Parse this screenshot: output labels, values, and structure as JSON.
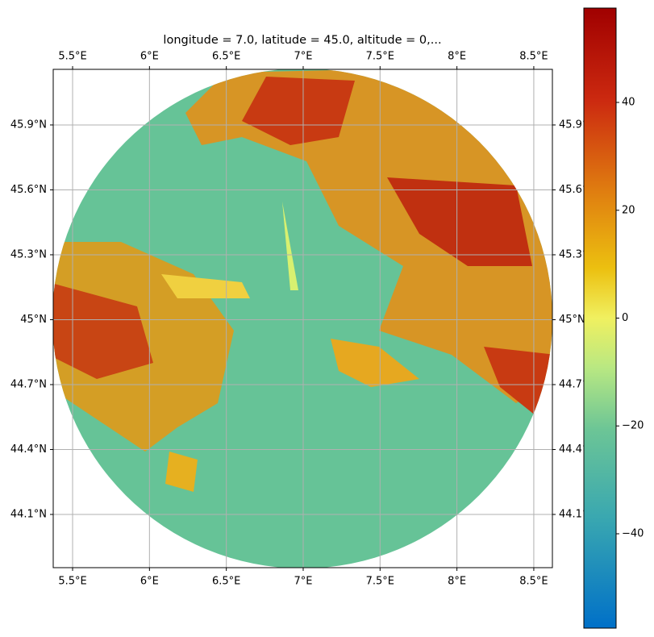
{
  "chart_data": {
    "type": "radar-map",
    "title": "longitude = 7.0, latitude = 45.0, altitude = 0,...",
    "xlim": [
      5.374,
      8.621
    ],
    "xticks": [
      {
        "value": 5.5,
        "label": "5.5°E"
      },
      {
        "value": 6,
        "label": "6°E"
      },
      {
        "value": 6.5,
        "label": "6.5°E"
      },
      {
        "value": 7,
        "label": "7°E"
      },
      {
        "value": 7.5,
        "label": "7.5°E"
      },
      {
        "value": 8,
        "label": "8°E"
      },
      {
        "value": 8.5,
        "label": "8.5°E"
      }
    ],
    "ylim": [
      43.854,
      46.157
    ],
    "yticks": [
      {
        "value": 44.1,
        "label": "44.1°N"
      },
      {
        "value": 44.4,
        "label": "44.4°N"
      },
      {
        "value": 44.7,
        "label": "44.7°N"
      },
      {
        "value": 45,
        "label": "45°N"
      },
      {
        "value": 45.3,
        "label": "45.3°N"
      },
      {
        "value": 45.6,
        "label": "45.6°N"
      },
      {
        "value": 45.9,
        "label": "45.9°N"
      }
    ],
    "grid": true,
    "clim": [
      -57.5,
      57.5
    ],
    "cticks": [
      {
        "value": -40,
        "label": "−40"
      },
      {
        "value": -20,
        "label": "−20"
      },
      0,
      20,
      40
    ]
  }
}
